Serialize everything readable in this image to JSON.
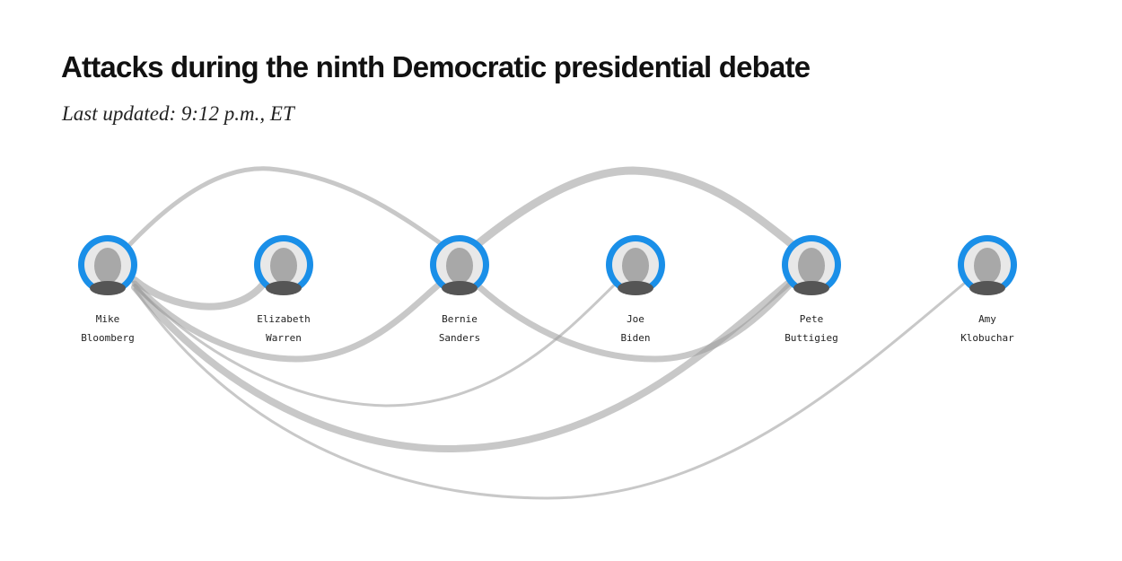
{
  "header": {
    "title": "Attacks during the ninth Democratic presidential debate",
    "subtitle": "Last updated: 9:12 p.m., ET"
  },
  "nodes": [
    {
      "first": "Mike",
      "last": "Bloomberg"
    },
    {
      "first": "Elizabeth",
      "last": "Warren"
    },
    {
      "first": "Bernie",
      "last": "Sanders"
    },
    {
      "first": "Joe",
      "last": "Biden"
    },
    {
      "first": "Pete",
      "last": "Buttigieg"
    },
    {
      "first": "Amy",
      "last": "Klobuchar"
    }
  ]
}
